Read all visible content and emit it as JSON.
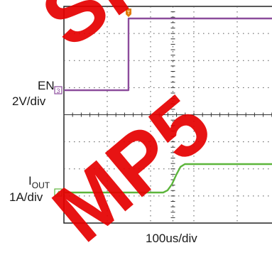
{
  "watermark": {
    "lines": [
      "SIG",
      "MP5"
    ],
    "color": "#e60000"
  },
  "channels": [
    {
      "name": "EN",
      "scale": "2V/div",
      "color": "#8c4c9c",
      "marker": "3"
    },
    {
      "name": "IOUT",
      "name_main": "I",
      "name_sub": "OUT",
      "scale": "1A/div",
      "color": "#5cb53b",
      "marker": "4"
    }
  ],
  "trigger_marker": {
    "label": "T",
    "color": "#e07b00"
  },
  "timebase": "100us/div",
  "chart_data": {
    "type": "line",
    "title": "",
    "xlabel": "100us/div",
    "ylabel": "",
    "grid": true,
    "divisions": {
      "x": 10,
      "y": 8
    },
    "time_per_div_us": 100,
    "series": [
      {
        "name": "EN",
        "scale": "2V/div",
        "unit": "V",
        "color": "#8c4c9c",
        "points": [
          [
            -150,
            0
          ],
          [
            -0.1,
            0
          ],
          [
            0,
            5.3
          ],
          [
            700,
            5.3
          ]
        ]
      },
      {
        "name": "IOUT",
        "scale": "1A/div",
        "unit": "A",
        "color": "#5cb53b",
        "points": [
          [
            -150,
            0
          ],
          [
            80,
            0
          ],
          [
            90,
            0.08
          ],
          [
            100,
            0.3
          ],
          [
            110,
            0.65
          ],
          [
            120,
            0.95
          ],
          [
            130,
            1.05
          ],
          [
            700,
            1.05
          ]
        ]
      }
    ]
  }
}
